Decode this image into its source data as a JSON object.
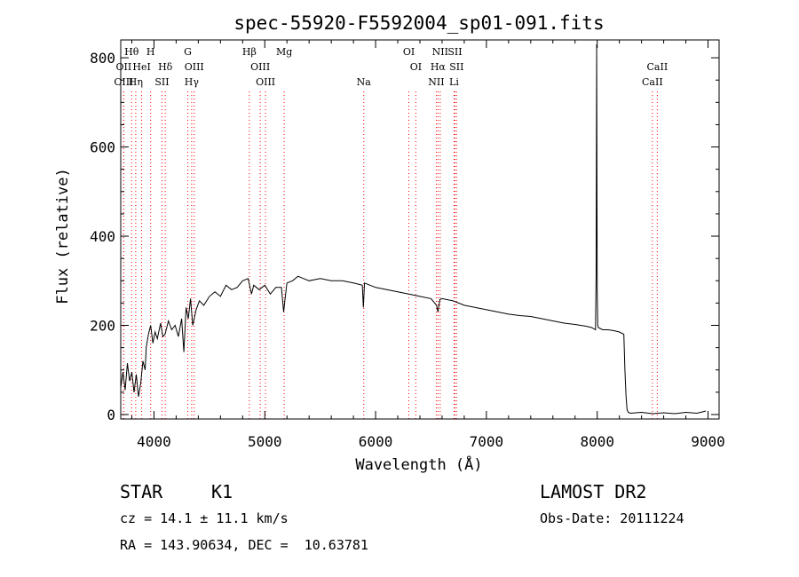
{
  "chart_data": {
    "type": "line",
    "title": "spec-55920-F5592004_sp01-091.fits",
    "xlabel": "Wavelength (Å)",
    "ylabel": "Flux (relative)",
    "xlim": [
      3700,
      9100
    ],
    "ylim": [
      -10,
      840
    ],
    "xticks": [
      4000,
      5000,
      6000,
      7000,
      8000,
      9000
    ],
    "yticks": [
      0,
      200,
      400,
      600,
      800
    ],
    "grid": false,
    "legend": "none",
    "line_color": "#000000",
    "marker_color": "#ff0000",
    "spectral_lines": [
      {
        "label": "Hθ",
        "x": 3798,
        "row": 0
      },
      {
        "label": "OII",
        "x": 3727,
        "row": 1
      },
      {
        "label": "HeI",
        "x": 3889,
        "row": 1
      },
      {
        "label": "OIII",
        "x": 3727,
        "row": 2
      },
      {
        "label": "Hη",
        "x": 3835,
        "row": 2
      },
      {
        "label": "H",
        "x": 3970,
        "row": 0
      },
      {
        "label": "Hδ",
        "x": 4102,
        "row": 1
      },
      {
        "label": "SII",
        "x": 4072,
        "row": 2
      },
      {
        "label": "G",
        "x": 4305,
        "row": 0
      },
      {
        "label": "OIII",
        "x": 4363,
        "row": 1
      },
      {
        "label": "Hγ",
        "x": 4340,
        "row": 2
      },
      {
        "label": "Hβ",
        "x": 4861,
        "row": 0
      },
      {
        "label": "OIII",
        "x": 4959,
        "row": 1
      },
      {
        "label": "OIII",
        "x": 5007,
        "row": 2
      },
      {
        "label": "Mg",
        "x": 5175,
        "row": 0
      },
      {
        "label": "Na",
        "x": 5893,
        "row": 2
      },
      {
        "label": "OI",
        "x": 6300,
        "row": 0
      },
      {
        "label": "OI",
        "x": 6363,
        "row": 1
      },
      {
        "label": "NII",
        "x": 6583,
        "row": 0
      },
      {
        "label": "SII",
        "x": 6716,
        "row": 0
      },
      {
        "label": "Hα",
        "x": 6563,
        "row": 1
      },
      {
        "label": "SII",
        "x": 6731,
        "row": 1
      },
      {
        "label": "NII",
        "x": 6548,
        "row": 2
      },
      {
        "label": "Li",
        "x": 6708,
        "row": 2
      },
      {
        "label": "CaII",
        "x": 8542,
        "row": 1
      },
      {
        "label": "CaII",
        "x": 8498,
        "row": 2
      }
    ],
    "series": [
      {
        "x": [
          3700,
          3720,
          3740,
          3760,
          3780,
          3800,
          3820,
          3840,
          3860,
          3880,
          3900,
          3920,
          3930,
          3950,
          3970,
          3990,
          4010,
          4030,
          4060,
          4080,
          4100,
          4130,
          4160,
          4190,
          4220,
          4250,
          4270,
          4290,
          4310,
          4330,
          4350,
          4380,
          4410,
          4450,
          4500,
          4550,
          4600,
          4650,
          4700,
          4750,
          4800,
          4850,
          4880,
          4900,
          4950,
          5000,
          5050,
          5100,
          5150,
          5170,
          5185,
          5200,
          5250,
          5300,
          5350,
          5400,
          5500,
          5600,
          5700,
          5800,
          5880,
          5890,
          5900,
          5950,
          6000,
          6100,
          6200,
          6300,
          6400,
          6500,
          6550,
          6563,
          6580,
          6600,
          6700,
          6800,
          6900,
          7000,
          7100,
          7200,
          7300,
          7400,
          7500,
          7600,
          7700,
          7800,
          7900,
          7950,
          7985,
          7990,
          7995,
          8000,
          8005,
          8010,
          8050,
          8100,
          8150,
          8200,
          8240,
          8245,
          8250,
          8260,
          8270,
          8280,
          8300,
          8400,
          8500,
          8600,
          8700,
          8800,
          8900,
          8950,
          8980
        ],
        "y": [
          60,
          95,
          55,
          115,
          75,
          95,
          50,
          90,
          40,
          70,
          120,
          100,
          150,
          180,
          200,
          160,
          185,
          170,
          205,
          175,
          180,
          210,
          190,
          200,
          175,
          215,
          140,
          240,
          215,
          260,
          200,
          235,
          255,
          245,
          265,
          275,
          265,
          290,
          280,
          285,
          300,
          305,
          270,
          290,
          280,
          290,
          270,
          285,
          285,
          230,
          265,
          295,
          300,
          310,
          305,
          300,
          305,
          300,
          300,
          295,
          290,
          240,
          295,
          290,
          285,
          280,
          275,
          270,
          265,
          260,
          245,
          230,
          258,
          260,
          255,
          245,
          240,
          235,
          230,
          225,
          222,
          220,
          215,
          210,
          205,
          202,
          198,
          195,
          190,
          320,
          830,
          280,
          200,
          195,
          190,
          190,
          188,
          185,
          180,
          140,
          100,
          40,
          10,
          5,
          3,
          5,
          2,
          4,
          2,
          5,
          3,
          6,
          8
        ]
      }
    ]
  },
  "info": {
    "object_class": "STAR",
    "subclass": "K1",
    "survey": "LAMOST DR2",
    "redshift": "cz = 14.1 ± 11.1 km/s",
    "obs_date": "Obs-Date: 20111224",
    "coords": "RA = 143.90634, DEC =  10.63781"
  }
}
